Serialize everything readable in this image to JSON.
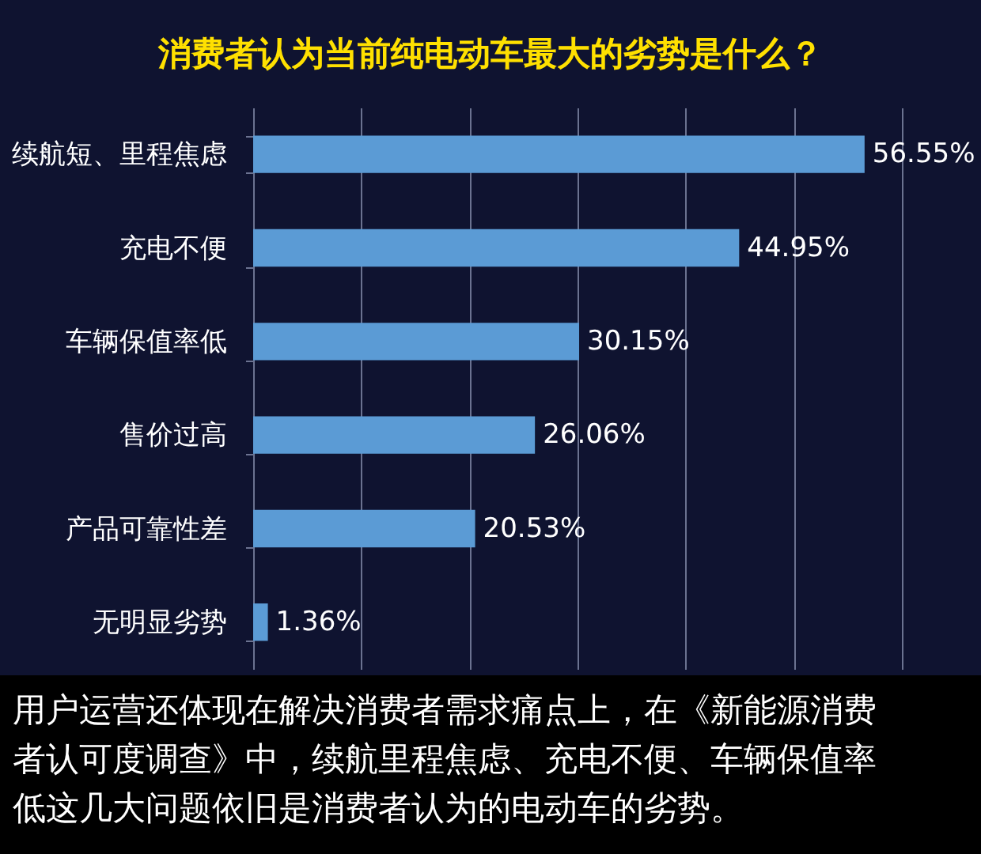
{
  "chart_data": {
    "type": "bar",
    "orientation": "horizontal",
    "title": "消费者认为当前纯电动车最大的劣势是什么？",
    "categories": [
      "续航短、里程焦虑",
      "充电不便",
      "车辆保值率低",
      "售价过高",
      "产品可靠性差",
      "无明显劣势"
    ],
    "values": [
      56.55,
      44.95,
      30.15,
      26.06,
      20.53,
      1.36
    ],
    "value_labels": [
      "56.55%",
      "44.95%",
      "30.15%",
      "26.06%",
      "20.53%",
      "1.36%"
    ],
    "color": "#5b9bd5",
    "grid": "x",
    "tick_labels": "y",
    "annotations": [
      "用户运营还体现在解决消费者需求痛点上，在《新能源消费者认可度调查》中，续航里程焦虑、充电不便、车辆保值率低这几大问题依旧是消费者认为的电动车的劣势。"
    ]
  }
}
